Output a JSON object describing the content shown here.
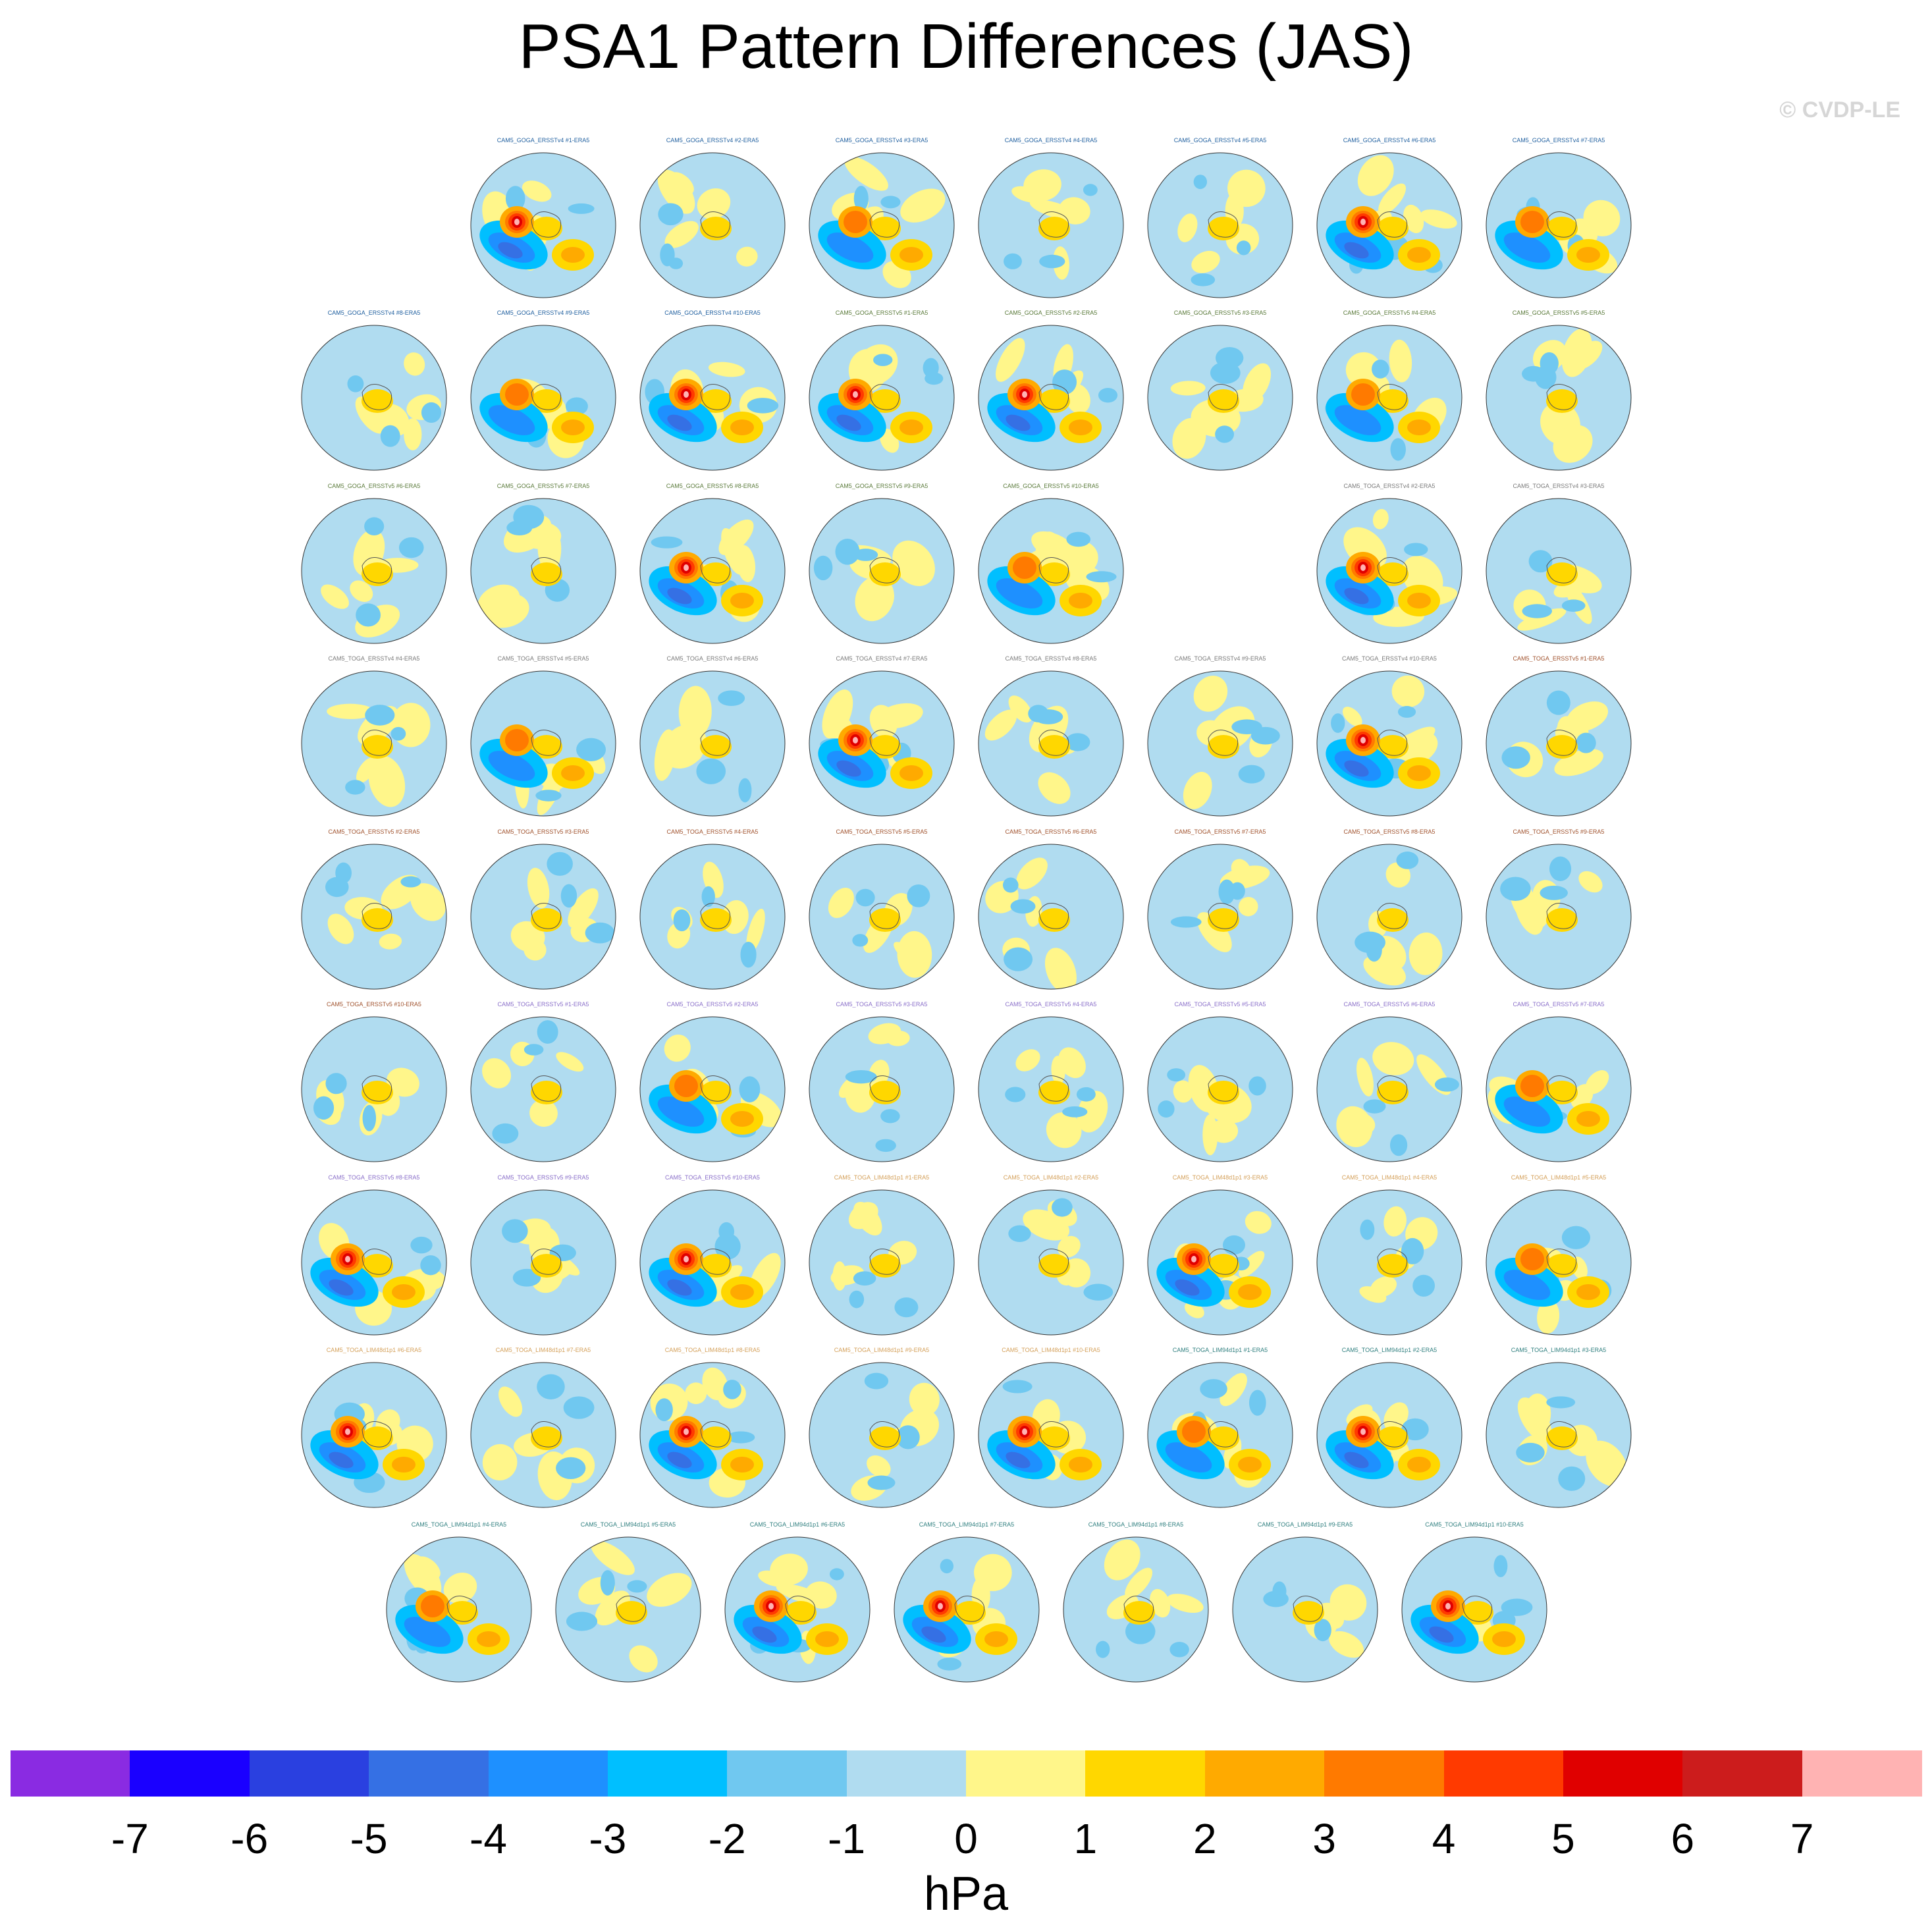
{
  "title": "PSA1 Pattern Differences (JAS)",
  "watermark": "© CVDP-LE",
  "colorbar": {
    "units": "hPa",
    "ticks": [
      "-7",
      "-6",
      "-5",
      "-4",
      "-3",
      "-2",
      "-1",
      "0",
      "1",
      "2",
      "3",
      "4",
      "5",
      "6",
      "7"
    ],
    "colors": [
      "#8a2be2",
      "#1a00ff",
      "#2a40e0",
      "#3570e4",
      "#1e90ff",
      "#00bfff",
      "#70c8f0",
      "#b0dcf0",
      "#fff68a",
      "#ffd700",
      "#ffaa00",
      "#ff7a00",
      "#ff3a00",
      "#e00000",
      "#cc1c1c",
      "#ffb3b3"
    ]
  },
  "chart_data": {
    "type": "heatmap",
    "title": "PSA1 Pattern Differences (JAS)",
    "projection": "south-polar stereographic",
    "units": "hPa",
    "levels": [
      -7,
      -6,
      -5,
      -4,
      -3,
      -2,
      -1,
      0,
      1,
      2,
      3,
      4,
      5,
      6,
      7
    ],
    "panel_rows": [
      [
        {
          "label": "CAM5_GOGA_ERSSTv4 #1-ERA5",
          "mode": "strong",
          "color": "#1f5f9f"
        },
        {
          "label": "CAM5_GOGA_ERSSTv4 #2-ERA5",
          "mode": "weak",
          "color": "#1f5f9f"
        },
        {
          "label": "CAM5_GOGA_ERSSTv4 #3-ERA5",
          "mode": "moderate",
          "color": "#1f5f9f"
        },
        {
          "label": "CAM5_GOGA_ERSSTv4 #4-ERA5",
          "mode": "weak",
          "color": "#1f5f9f"
        },
        {
          "label": "CAM5_GOGA_ERSSTv4 #5-ERA5",
          "mode": "weak",
          "color": "#1f5f9f"
        },
        {
          "label": "CAM5_GOGA_ERSSTv4 #6-ERA5",
          "mode": "strong",
          "color": "#1f5f9f"
        },
        {
          "label": "CAM5_GOGA_ERSSTv4 #7-ERA5",
          "mode": "moderate",
          "color": "#1f5f9f"
        }
      ],
      [
        {
          "label": "CAM5_GOGA_ERSSTv4 #8-ERA5",
          "mode": "weak",
          "color": "#1f5f9f"
        },
        {
          "label": "CAM5_GOGA_ERSSTv4 #9-ERA5",
          "mode": "moderate",
          "color": "#1f5f9f"
        },
        {
          "label": "CAM5_GOGA_ERSSTv4 #10-ERA5",
          "mode": "strong",
          "color": "#1f5f9f"
        },
        {
          "label": "CAM5_GOGA_ERSSTv5 #1-ERA5",
          "mode": "strong",
          "color": "#5a7a3a"
        },
        {
          "label": "CAM5_GOGA_ERSSTv5 #2-ERA5",
          "mode": "strong",
          "color": "#5a7a3a"
        },
        {
          "label": "CAM5_GOGA_ERSSTv5 #3-ERA5",
          "mode": "weak",
          "color": "#5a7a3a"
        },
        {
          "label": "CAM5_GOGA_ERSSTv5 #4-ERA5",
          "mode": "moderate",
          "color": "#5a7a3a"
        },
        {
          "label": "CAM5_GOGA_ERSSTv5 #5-ERA5",
          "mode": "weak",
          "color": "#5a7a3a"
        }
      ],
      [
        {
          "label": "CAM5_GOGA_ERSSTv5 #6-ERA5",
          "mode": "weak",
          "color": "#5a7a3a"
        },
        {
          "label": "CAM5_GOGA_ERSSTv5 #7-ERA5",
          "mode": "weak",
          "color": "#5a7a3a"
        },
        {
          "label": "CAM5_GOGA_ERSSTv5 #8-ERA5",
          "mode": "strong",
          "color": "#5a7a3a"
        },
        {
          "label": "CAM5_GOGA_ERSSTv5 #9-ERA5",
          "mode": "weak",
          "color": "#5a7a3a"
        },
        {
          "label": "CAM5_GOGA_ERSSTv5 #10-ERA5",
          "mode": "moderate",
          "color": "#5a7a3a"
        },
        null,
        {
          "label": "CAM5_TOGA_ERSSTv4 #2-ERA5",
          "mode": "strong",
          "color": "#7a7a7a"
        },
        {
          "label": "CAM5_TOGA_ERSSTv4 #3-ERA5",
          "mode": "weak",
          "color": "#7a7a7a"
        }
      ],
      [
        {
          "label": "CAM5_TOGA_ERSSTv4 #4-ERA5",
          "mode": "weak",
          "color": "#7a7a7a"
        },
        {
          "label": "CAM5_TOGA_ERSSTv4 #5-ERA5",
          "mode": "moderate",
          "color": "#7a7a7a"
        },
        {
          "label": "CAM5_TOGA_ERSSTv4 #6-ERA5",
          "mode": "weak",
          "color": "#7a7a7a"
        },
        {
          "label": "CAM5_TOGA_ERSSTv4 #7-ERA5",
          "mode": "strong",
          "color": "#7a7a7a"
        },
        {
          "label": "CAM5_TOGA_ERSSTv4 #8-ERA5",
          "mode": "weak",
          "color": "#7a7a7a"
        },
        {
          "label": "CAM5_TOGA_ERSSTv4 #9-ERA5",
          "mode": "weak",
          "color": "#7a7a7a"
        },
        {
          "label": "CAM5_TOGA_ERSSTv4 #10-ERA5",
          "mode": "strong",
          "color": "#7a7a7a"
        },
        {
          "label": "CAM5_TOGA_ERSSTv5 #1-ERA5",
          "mode": "weak",
          "color": "#a0522d"
        }
      ],
      [
        {
          "label": "CAM5_TOGA_ERSSTv5 #2-ERA5",
          "mode": "weak",
          "color": "#a0522d"
        },
        {
          "label": "CAM5_TOGA_ERSSTv5 #3-ERA5",
          "mode": "weak",
          "color": "#a0522d"
        },
        {
          "label": "CAM5_TOGA_ERSSTv5 #4-ERA5",
          "mode": "weak",
          "color": "#a0522d"
        },
        {
          "label": "CAM5_TOGA_ERSSTv5 #5-ERA5",
          "mode": "weak",
          "color": "#a0522d"
        },
        {
          "label": "CAM5_TOGA_ERSSTv5 #6-ERA5",
          "mode": "weak",
          "color": "#a0522d"
        },
        {
          "label": "CAM5_TOGA_ERSSTv5 #7-ERA5",
          "mode": "weak",
          "color": "#a0522d"
        },
        {
          "label": "CAM5_TOGA_ERSSTv5 #8-ERA5",
          "mode": "weak",
          "color": "#a0522d"
        },
        {
          "label": "CAM5_TOGA_ERSSTv5 #9-ERA5",
          "mode": "weak",
          "color": "#a0522d"
        }
      ],
      [
        {
          "label": "CAM5_TOGA_ERSSTv5 #10-ERA5",
          "mode": "weak",
          "color": "#a0522d"
        },
        {
          "label": "CAM5_TOGA_ERSSTv5 #1-ERA5",
          "mode": "weak",
          "color": "#8a6fc9"
        },
        {
          "label": "CAM5_TOGA_ERSSTv5 #2-ERA5",
          "mode": "moderate",
          "color": "#8a6fc9"
        },
        {
          "label": "CAM5_TOGA_ERSSTv5 #3-ERA5",
          "mode": "weak",
          "color": "#8a6fc9"
        },
        {
          "label": "CAM5_TOGA_ERSSTv5 #4-ERA5",
          "mode": "weak",
          "color": "#8a6fc9"
        },
        {
          "label": "CAM5_TOGA_ERSSTv5 #5-ERA5",
          "mode": "weak",
          "color": "#8a6fc9"
        },
        {
          "label": "CAM5_TOGA_ERSSTv5 #6-ERA5",
          "mode": "weak",
          "color": "#8a6fc9"
        },
        {
          "label": "CAM5_TOGA_ERSSTv5 #7-ERA5",
          "mode": "moderate",
          "color": "#8a6fc9"
        }
      ],
      [
        {
          "label": "CAM5_TOGA_ERSSTv5 #8-ERA5",
          "mode": "strong",
          "color": "#8a6fc9"
        },
        {
          "label": "CAM5_TOGA_ERSSTv5 #9-ERA5",
          "mode": "weak",
          "color": "#8a6fc9"
        },
        {
          "label": "CAM5_TOGA_ERSSTv5 #10-ERA5",
          "mode": "strong",
          "color": "#8a6fc9"
        },
        {
          "label": "CAM5_TOGA_LIM48d1p1 #1-ERA5",
          "mode": "weak",
          "color": "#d4a05a"
        },
        {
          "label": "CAM5_TOGA_LIM48d1p1 #2-ERA5",
          "mode": "weak",
          "color": "#d4a05a"
        },
        {
          "label": "CAM5_TOGA_LIM48d1p1 #3-ERA5",
          "mode": "strong",
          "color": "#d4a05a"
        },
        {
          "label": "CAM5_TOGA_LIM48d1p1 #4-ERA5",
          "mode": "weak",
          "color": "#d4a05a"
        },
        {
          "label": "CAM5_TOGA_LIM48d1p1 #5-ERA5",
          "mode": "moderate",
          "color": "#d4a05a"
        }
      ],
      [
        {
          "label": "CAM5_TOGA_LIM48d1p1 #6-ERA5",
          "mode": "strong",
          "color": "#d4a05a"
        },
        {
          "label": "CAM5_TOGA_LIM48d1p1 #7-ERA5",
          "mode": "weak",
          "color": "#d4a05a"
        },
        {
          "label": "CAM5_TOGA_LIM48d1p1 #8-ERA5",
          "mode": "strong",
          "color": "#d4a05a"
        },
        {
          "label": "CAM5_TOGA_LIM48d1p1 #9-ERA5",
          "mode": "weak",
          "color": "#d4a05a"
        },
        {
          "label": "CAM5_TOGA_LIM48d1p1 #10-ERA5",
          "mode": "strong",
          "color": "#d4a05a"
        },
        {
          "label": "CAM5_TOGA_LIM94d1p1 #1-ERA5",
          "mode": "moderate",
          "color": "#2f7f7f"
        },
        {
          "label": "CAM5_TOGA_LIM94d1p1 #2-ERA5",
          "mode": "strong",
          "color": "#2f7f7f"
        },
        {
          "label": "CAM5_TOGA_LIM94d1p1 #3-ERA5",
          "mode": "weak",
          "color": "#2f7f7f"
        }
      ],
      [
        {
          "label": "CAM5_TOGA_LIM94d1p1 #4-ERA5",
          "mode": "moderate",
          "color": "#2f7f7f"
        },
        {
          "label": "CAM5_TOGA_LIM94d1p1 #5-ERA5",
          "mode": "weak",
          "color": "#2f7f7f"
        },
        {
          "label": "CAM5_TOGA_LIM94d1p1 #6-ERA5",
          "mode": "strong",
          "color": "#2f7f7f"
        },
        {
          "label": "CAM5_TOGA_LIM94d1p1 #7-ERA5",
          "mode": "strong",
          "color": "#2f7f7f"
        },
        {
          "label": "CAM5_TOGA_LIM94d1p1 #8-ERA5",
          "mode": "weak",
          "color": "#2f7f7f"
        },
        {
          "label": "CAM5_TOGA_LIM94d1p1 #9-ERA5",
          "mode": "weak",
          "color": "#2f7f7f"
        },
        {
          "label": "CAM5_TOGA_LIM94d1p1 #10-ERA5",
          "mode": "strong",
          "color": "#2f7f7f"
        }
      ]
    ]
  }
}
